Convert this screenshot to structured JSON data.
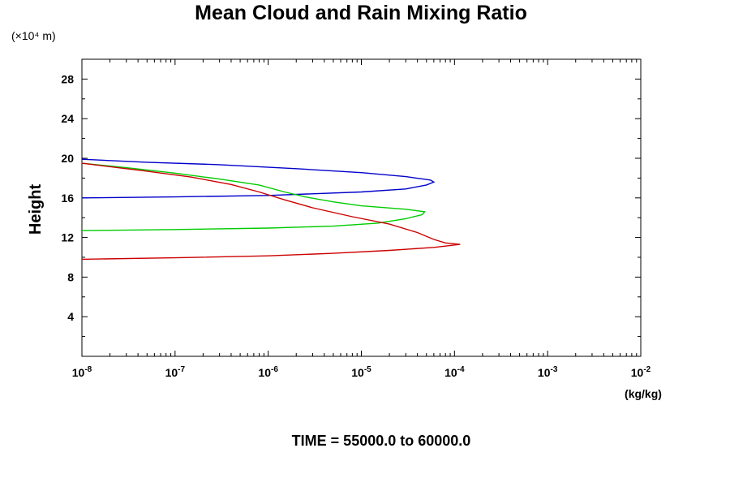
{
  "chart_data": {
    "type": "line",
    "title": "Mean Cloud and Rain Mixing Ratio",
    "ylabel": "Height",
    "y_unit_label": "(×10⁴ m)",
    "x_unit_label": "(kg/kg)",
    "footer": "TIME = 55000.0 to 60000.0",
    "x_scale": "log",
    "xlim": [
      1e-08,
      0.01
    ],
    "ylim": [
      0,
      30
    ],
    "y_ticks": [
      4,
      8,
      12,
      16,
      20,
      24,
      28
    ],
    "x_ticks": [
      {
        "base": "10",
        "exp": "-8"
      },
      {
        "base": "10",
        "exp": "-7"
      },
      {
        "base": "10",
        "exp": "-6"
      },
      {
        "base": "10",
        "exp": "-5"
      },
      {
        "base": "10",
        "exp": "-4"
      },
      {
        "base": "10",
        "exp": "-3"
      },
      {
        "base": "10",
        "exp": "-2"
      }
    ],
    "series": [
      {
        "color": "#0000cc",
        "points": [
          [
            1e-08,
            16.0
          ],
          [
            1e-07,
            16.1
          ],
          [
            1e-06,
            16.25
          ],
          [
            1e-05,
            16.6
          ],
          [
            3e-05,
            16.9
          ],
          [
            5e-05,
            17.3
          ],
          [
            6e-05,
            17.6
          ],
          [
            5.5e-05,
            17.8
          ],
          [
            3e-05,
            18.15
          ],
          [
            1e-05,
            18.55
          ],
          [
            2e-06,
            18.95
          ],
          [
            3e-07,
            19.35
          ],
          [
            5e-08,
            19.6
          ],
          [
            1e-08,
            19.9
          ]
        ]
      },
      {
        "color": "#00cc00",
        "points": [
          [
            1e-08,
            12.7
          ],
          [
            1e-07,
            12.8
          ],
          [
            1e-06,
            12.95
          ],
          [
            5e-06,
            13.15
          ],
          [
            1.5e-05,
            13.45
          ],
          [
            3e-05,
            13.9
          ],
          [
            4.5e-05,
            14.3
          ],
          [
            4.8e-05,
            14.6
          ],
          [
            3e-05,
            14.85
          ],
          [
            1e-05,
            15.2
          ],
          [
            5e-06,
            15.6
          ],
          [
            2.5e-06,
            16.1
          ],
          [
            1.5e-06,
            16.6
          ],
          [
            8e-07,
            17.3
          ],
          [
            3e-07,
            17.9
          ],
          [
            1e-07,
            18.5
          ],
          [
            3e-08,
            19.05
          ],
          [
            1e-08,
            19.5
          ]
        ]
      },
      {
        "color": "#cc0000",
        "points": [
          [
            1e-08,
            9.8
          ],
          [
            1e-07,
            9.95
          ],
          [
            1e-06,
            10.15
          ],
          [
            5e-06,
            10.4
          ],
          [
            2e-05,
            10.7
          ],
          [
            6e-05,
            11.0
          ],
          [
            0.000115,
            11.3
          ],
          [
            8e-05,
            11.45
          ],
          [
            6e-05,
            11.8
          ],
          [
            4e-05,
            12.5
          ],
          [
            2e-05,
            13.35
          ],
          [
            8e-06,
            14.1
          ],
          [
            3e-06,
            15.0
          ],
          [
            1.5e-06,
            15.8
          ],
          [
            8e-07,
            16.6
          ],
          [
            4e-07,
            17.35
          ],
          [
            1.5e-07,
            18.1
          ],
          [
            5e-08,
            18.7
          ],
          [
            1e-08,
            19.5
          ]
        ]
      }
    ]
  }
}
